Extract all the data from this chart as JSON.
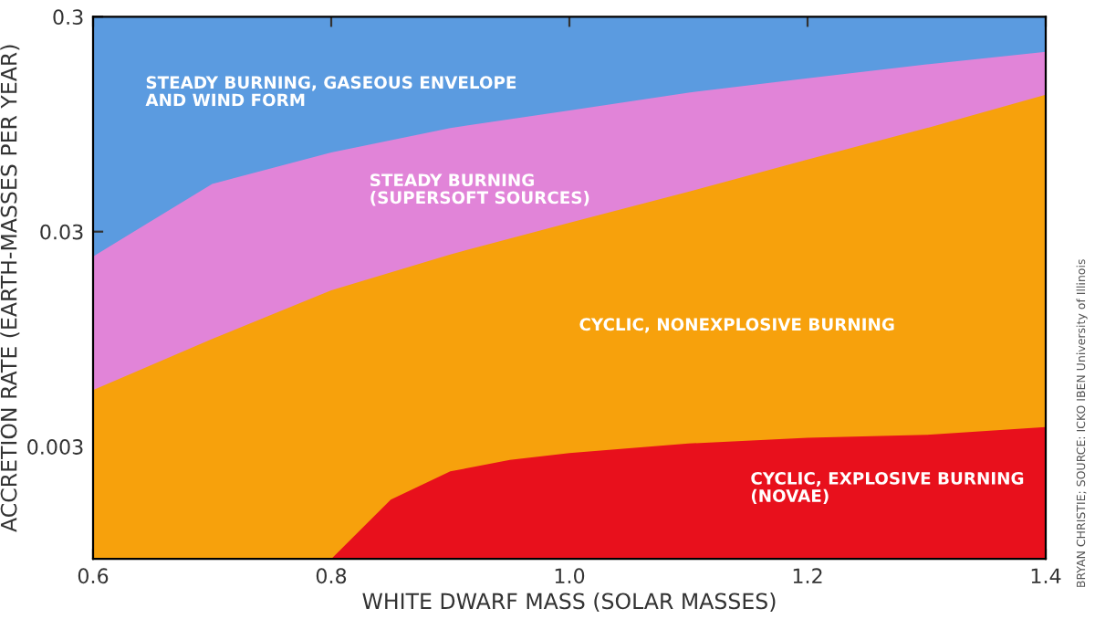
{
  "chart_data": {
    "type": "area",
    "xlabel": "WHITE DWARF MASS (SOLAR MASSES)",
    "ylabel": "ACCRETION RATE (EARTH-MASSES PER YEAR)",
    "log": "y",
    "xlim": [
      0.6,
      1.4
    ],
    "xticks": [
      0.6,
      0.8,
      {
        "value": 1.0,
        "label": "1.0"
      },
      1.2,
      1.4
    ],
    "ylim": [
      0.0009,
      0.3
    ],
    "yticks": [
      0.003,
      0.03,
      0.3
    ],
    "legend": false,
    "series": [
      {
        "name": "STEADY BURNING, GASEOUS ENVELOPE\nAND WIND FORM",
        "color": "#5b9be0",
        "x": [
          0.6,
          1.4
        ],
        "values": [
          0.3,
          0.3
        ]
      },
      {
        "name": "STEADY BURNING\n(SUPERSOFT SOURCES)",
        "color": "#e184d8",
        "x": [
          0.6,
          0.7,
          0.8,
          0.9,
          1.0,
          1.1,
          1.2,
          1.3,
          1.4
        ],
        "values": [
          0.023,
          0.05,
          0.07,
          0.091,
          0.11,
          0.133,
          0.155,
          0.18,
          0.206
        ]
      },
      {
        "name": "CYCLIC, NONEXPLOSIVE BURNING",
        "color": "#f7a10c",
        "x": [
          0.6,
          0.7,
          0.8,
          0.9,
          1.0,
          1.1,
          1.2,
          1.3,
          1.4
        ],
        "values": [
          0.0055,
          0.0095,
          0.016,
          0.0235,
          0.033,
          0.046,
          0.065,
          0.091,
          0.13
        ]
      },
      {
        "name": "CYCLIC, EXPLOSIVE BURNING\n(NOVAE)",
        "color": "#e8101c",
        "x": [
          0.8,
          0.85,
          0.9,
          0.95,
          1.0,
          1.1,
          1.2,
          1.3,
          1.4
        ],
        "values": [
          0.0009,
          0.0017,
          0.0023,
          0.0026,
          0.0028,
          0.0031,
          0.0033,
          0.0034,
          0.0037
        ]
      }
    ],
    "annotations": [
      "BRYAN CHRISTIE; SOURCE: ICKO IBEN University of Illinois"
    ]
  }
}
